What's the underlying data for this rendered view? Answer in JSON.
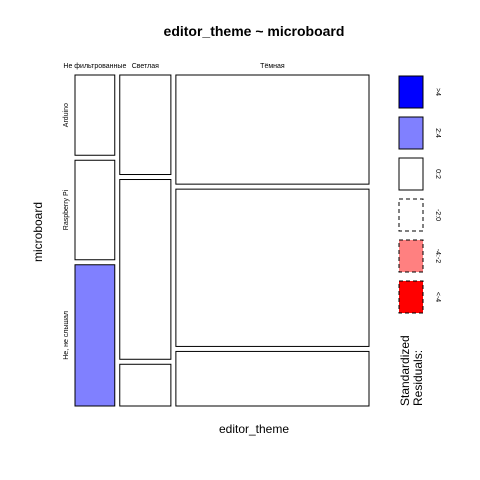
{
  "chart_data": {
    "type": "mosaic",
    "title": "editor_theme ~ microboard",
    "xlabel": "editor_theme",
    "ylabel": "microboard",
    "x_categories": [
      "Не фильтрованные",
      "Светлая",
      "Тёмная"
    ],
    "y_categories": [
      "Arduino",
      "Raspberry Pi",
      "Не, не слышал"
    ],
    "cells": [
      {
        "x": "Не фильтрованные",
        "y": "Arduino",
        "share": 0.25,
        "residual": "0:-2"
      },
      {
        "x": "Не фильтрованные",
        "y": "Raspberry Pi",
        "share": 0.31,
        "residual": "0:-2"
      },
      {
        "x": "Не фильтрованные",
        "y": "Не, не слышал",
        "share": 0.44,
        "residual": "2:4"
      },
      {
        "x": "Светлая",
        "y": "Arduino",
        "share": 0.31,
        "residual": "0:-2"
      },
      {
        "x": "Светлая",
        "y": "Raspberry Pi",
        "share": 0.56,
        "residual": "0:2"
      },
      {
        "x": "Светлая",
        "y": "Не, не слышал",
        "share": 0.13,
        "residual": "0:-2"
      },
      {
        "x": "Тёмная",
        "y": "Arduino",
        "share": 0.34,
        "residual": "0:2"
      },
      {
        "x": "Тёмная",
        "y": "Raspberry Pi",
        "share": 0.49,
        "residual": "0:2"
      },
      {
        "x": "Тёмная",
        "y": "Не, не слышал",
        "share": 0.17,
        "residual": "0:-2"
      }
    ],
    "column_shares": [
      0.14,
      0.18,
      0.68
    ],
    "legend": {
      "title_line1": "Standardized",
      "title_line2": "Residuals:",
      "placement": "right",
      "items": [
        {
          "label": ">4",
          "fill": "#0000ff",
          "dashed": false
        },
        {
          "label": "2:4",
          "fill": "#8080ff",
          "dashed": false
        },
        {
          "label": "0:2",
          "fill": "#ffffff",
          "dashed": false
        },
        {
          "label": "-2:0",
          "fill": "#ffffff",
          "dashed": true
        },
        {
          "label": "-4:-2",
          "fill": "#ff8080",
          "dashed": true
        },
        {
          "label": "<-4",
          "fill": "#ff0000",
          "dashed": true
        }
      ]
    }
  }
}
